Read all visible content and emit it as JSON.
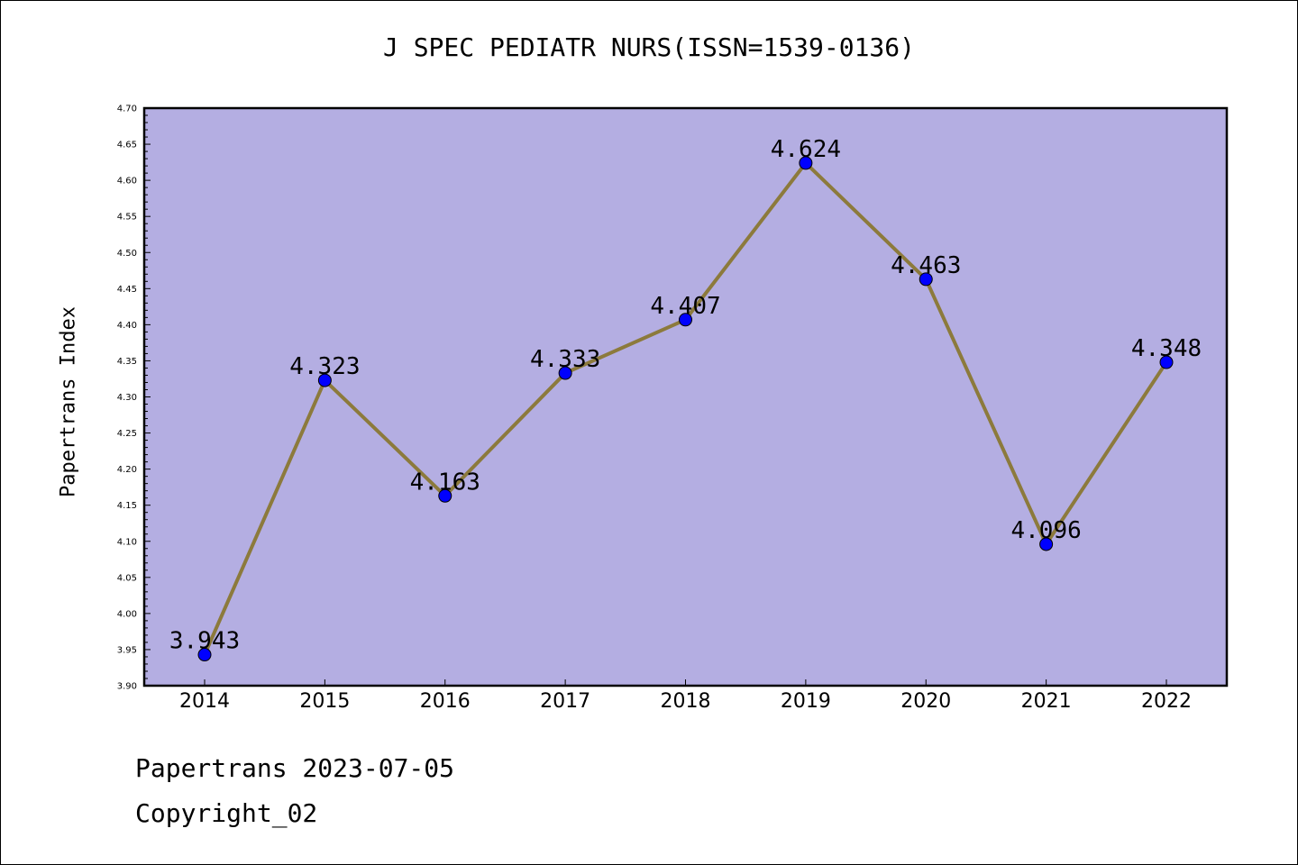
{
  "title": "J SPEC PEDIATR NURS(ISSN=1539-0136)",
  "footer": {
    "line1": "Papertrans 2023-07-05",
    "line2": "Copyright_02"
  },
  "colors": {
    "plot_background": "#b4aee2",
    "line": "#8c7a3c",
    "marker": "#0000ff"
  },
  "chart_data": {
    "type": "line",
    "title": "J SPEC PEDIATR NURS(ISSN=1539-0136)",
    "xlabel": "",
    "ylabel": "Papertrans Index",
    "categories": [
      "2014",
      "2015",
      "2016",
      "2017",
      "2018",
      "2019",
      "2020",
      "2021",
      "2022"
    ],
    "values": [
      3.943,
      4.323,
      4.163,
      4.333,
      4.407,
      4.624,
      4.463,
      4.096,
      4.348
    ],
    "data_labels": [
      "3.943",
      "4.323",
      "4.163",
      "4.333",
      "4.407",
      "4.624",
      "4.463",
      "4.096",
      "4.348"
    ],
    "ylim": [
      3.9,
      4.7
    ],
    "yticks": [
      "3.90",
      "3.95",
      "4.00",
      "4.05",
      "4.10",
      "4.15",
      "4.20",
      "4.25",
      "4.30",
      "4.35",
      "4.40",
      "4.45",
      "4.50",
      "4.55",
      "4.60",
      "4.65",
      "4.70"
    ],
    "grid": false,
    "legend": "none"
  }
}
